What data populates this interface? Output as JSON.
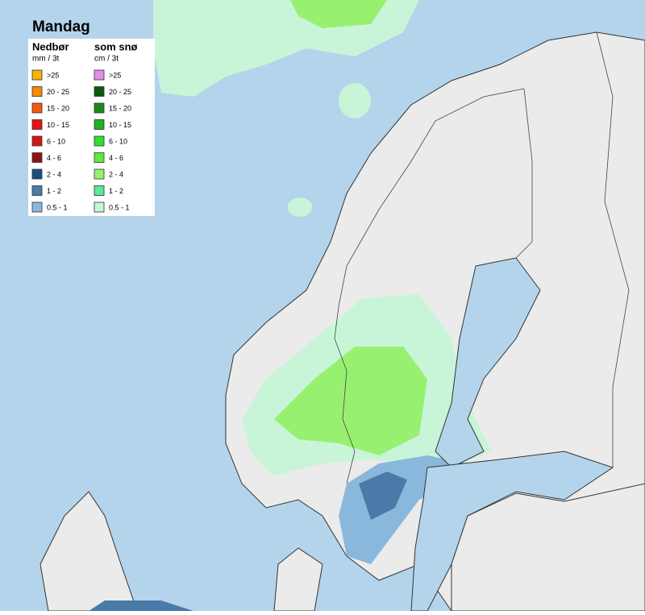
{
  "title": "Mandag",
  "legend": {
    "rain": {
      "title": "Nedbør",
      "unit": "mm / 3t",
      "items": [
        {
          "label": ">25",
          "color": "#f7b500"
        },
        {
          "label": "20 - 25",
          "color": "#f58a00"
        },
        {
          "label": "15 - 20",
          "color": "#f05a10"
        },
        {
          "label": "10 - 15",
          "color": "#e81010"
        },
        {
          "label": "6 - 10",
          "color": "#d01818"
        },
        {
          "label": "4 - 6",
          "color": "#8a1414"
        },
        {
          "label": "2 - 4",
          "color": "#1a4f80"
        },
        {
          "label": "1 - 2",
          "color": "#4a7aa8"
        },
        {
          "label": "0.5 - 1",
          "color": "#8ab8dc"
        }
      ]
    },
    "snow": {
      "title": "som snø",
      "unit": "cm / 3t",
      "items": [
        {
          "label": ">25",
          "color": "#e090e8"
        },
        {
          "label": "20 - 25",
          "color": "#0a5a0a"
        },
        {
          "label": "15 - 20",
          "color": "#1a8a1a"
        },
        {
          "label": "10 - 15",
          "color": "#20b020"
        },
        {
          "label": "6 - 10",
          "color": "#30e030"
        },
        {
          "label": "4 - 6",
          "color": "#60e840"
        },
        {
          "label": "2 - 4",
          "color": "#98f070"
        },
        {
          "label": "1 - 2",
          "color": "#58e898"
        },
        {
          "label": "0.5 - 1",
          "color": "#c8f5d8"
        }
      ]
    }
  }
}
